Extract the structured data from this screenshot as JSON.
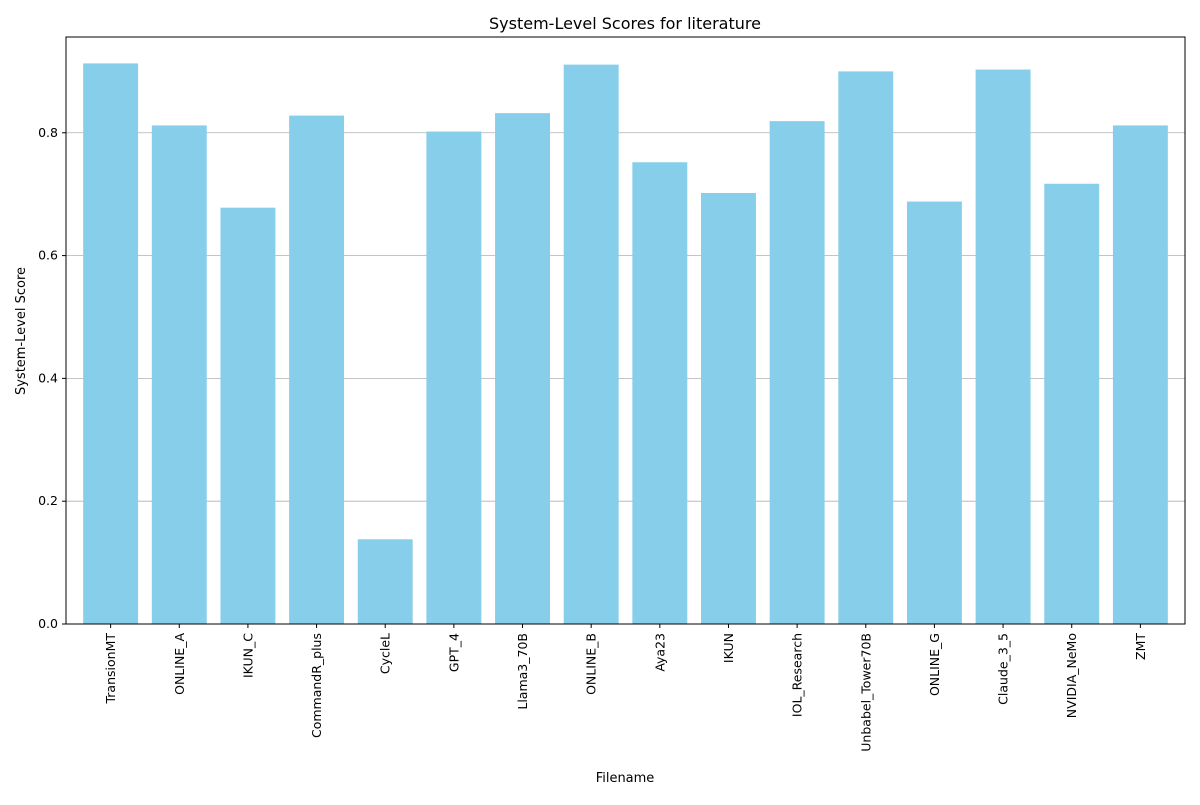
{
  "chart_data": {
    "type": "bar",
    "title": "System-Level Scores for literature",
    "xlabel": "Filename",
    "ylabel": "System-Level Score",
    "categories": [
      "TransionMT",
      "ONLINE_A",
      "IKUN_C",
      "CommandR_plus",
      "CycleL",
      "GPT_4",
      "Llama3_70B",
      "ONLINE_B",
      "Aya23",
      "IKUN",
      "IOL_Research",
      "Unbabel_Tower70B",
      "ONLINE_G",
      "Claude_3_5",
      "NVIDIA_NeMo",
      "ZMT"
    ],
    "values": [
      0.913,
      0.812,
      0.678,
      0.828,
      0.138,
      0.802,
      0.832,
      0.911,
      0.752,
      0.702,
      0.819,
      0.9,
      0.688,
      0.903,
      0.717,
      0.812
    ],
    "ylim": [
      0,
      0.956
    ],
    "yticks": [
      0.0,
      0.2,
      0.4,
      0.6,
      0.8
    ],
    "ytick_labels": [
      "0.0",
      "0.2",
      "0.4",
      "0.6",
      "0.8"
    ],
    "grid": "y",
    "bar_color": "#87ceeb",
    "grid_color": "#b0b0b0"
  }
}
